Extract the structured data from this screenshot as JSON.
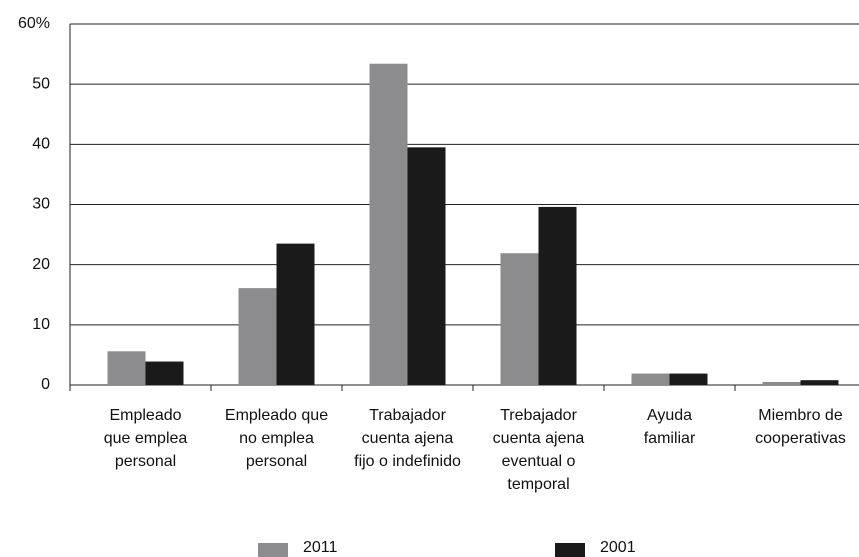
{
  "chart_data": {
    "type": "bar",
    "categories": [
      [
        "Empleado",
        "que emplea",
        "personal"
      ],
      [
        "Empleado que",
        "no emplea",
        "personal"
      ],
      [
        "Trabajador",
        "cuenta ajena",
        "fijo o indefinido"
      ],
      [
        "Trebajador",
        "cuenta ajena",
        "eventual o",
        "temporal"
      ],
      [
        "Ayuda",
        "familiar"
      ],
      [
        "Miembro de",
        "cooperativas"
      ]
    ],
    "series": [
      {
        "name": "2011",
        "color": "#8c8c8e",
        "values": [
          5.6,
          16.1,
          53.4,
          21.9,
          1.9,
          0.5
        ]
      },
      {
        "name": "2001",
        "color": "#1a1a1a",
        "values": [
          3.9,
          23.5,
          39.5,
          29.6,
          1.9,
          0.8
        ]
      }
    ],
    "ylim": [
      0,
      60
    ],
    "yticks": [
      0,
      10,
      20,
      30,
      40,
      50,
      {
        "value": 60,
        "label": "60%"
      }
    ],
    "grid": true
  }
}
